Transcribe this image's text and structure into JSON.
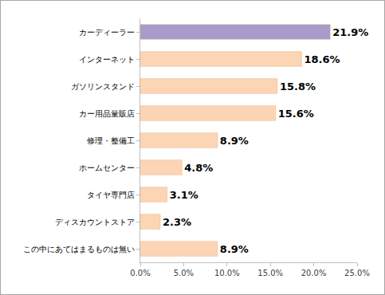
{
  "chart_data": {
    "type": "bar",
    "orientation": "horizontal",
    "categories": [
      "カーディーラー",
      "インターネット",
      "ガソリンスタンド",
      "カー用品量販店",
      "修理・整備工",
      "ホームセンター",
      "タイヤ専門店",
      "ディスカウントストア",
      "この中にあてはまるものは無い"
    ],
    "values": [
      21.9,
      18.6,
      15.8,
      15.6,
      8.9,
      4.8,
      3.1,
      2.3,
      8.9
    ],
    "value_labels": [
      "21.9%",
      "18.6%",
      "15.8%",
      "15.6%",
      "8.9%",
      "4.8%",
      "3.1%",
      "2.3%",
      "8.9%"
    ],
    "colors": [
      "#a99bc9",
      "#fcd5b5",
      "#fcd5b5",
      "#fcd5b5",
      "#fcd5b5",
      "#fcd5b5",
      "#fcd5b5",
      "#fcd5b5",
      "#fcd5b5"
    ],
    "xlim": [
      0,
      25
    ],
    "xticks": [
      {
        "value": 0,
        "label": "0.0%"
      },
      {
        "value": 5,
        "label": "5.0%"
      },
      {
        "value": 10,
        "label": "10.0%"
      },
      {
        "value": 15,
        "label": "15.0%"
      },
      {
        "value": 20,
        "label": "20.0%"
      },
      {
        "value": 25,
        "label": "25.0%"
      }
    ],
    "grid": false,
    "data_labels": true
  }
}
